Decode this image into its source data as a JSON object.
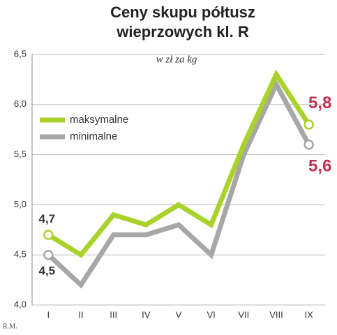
{
  "chart_data": {
    "type": "line",
    "title": [
      "Ceny skupu półtusz",
      "wieprzowych kl. R"
    ],
    "subtitle": "w zł za kg",
    "credit": "R.M.",
    "categories": [
      "I",
      "II",
      "III",
      "IV",
      "V",
      "VI",
      "VII",
      "VIII",
      "IX"
    ],
    "series": [
      {
        "name": "maksymalne",
        "color": "#a9d22b",
        "values": [
          4.7,
          4.5,
          4.9,
          4.8,
          5.0,
          4.8,
          5.6,
          6.3,
          5.8
        ],
        "value_labels": [
          "4,7",
          null,
          null,
          null,
          null,
          null,
          null,
          null,
          "5,8"
        ]
      },
      {
        "name": "minimalne",
        "color": "#a7a7a7",
        "values": [
          4.5,
          4.2,
          4.7,
          4.7,
          4.8,
          4.5,
          5.5,
          6.2,
          5.6
        ],
        "value_labels": [
          "4,5",
          null,
          null,
          null,
          null,
          null,
          null,
          null,
          "5,6"
        ]
      }
    ],
    "ylim": [
      4.0,
      6.5
    ],
    "yticks": [
      {
        "value": 4.0,
        "label": "4,0"
      },
      {
        "value": 4.5,
        "label": "4,5"
      },
      {
        "value": 5.0,
        "label": "5,0"
      },
      {
        "value": 5.5,
        "label": "5,5"
      },
      {
        "value": 6.0,
        "label": "6,0"
      },
      {
        "value": 6.5,
        "label": "6,5"
      }
    ],
    "grid": true
  }
}
